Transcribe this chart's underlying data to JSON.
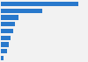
{
  "values": [
    40.5,
    21.5,
    9.0,
    7.5,
    6.5,
    5.0,
    4.0,
    3.0,
    1.5
  ],
  "bar_color": "#2979cc",
  "background_color": "#f2f2f2",
  "plot_background": "#f2f2f2",
  "grid_color": "#cccccc",
  "xlim": [
    0,
    45
  ]
}
